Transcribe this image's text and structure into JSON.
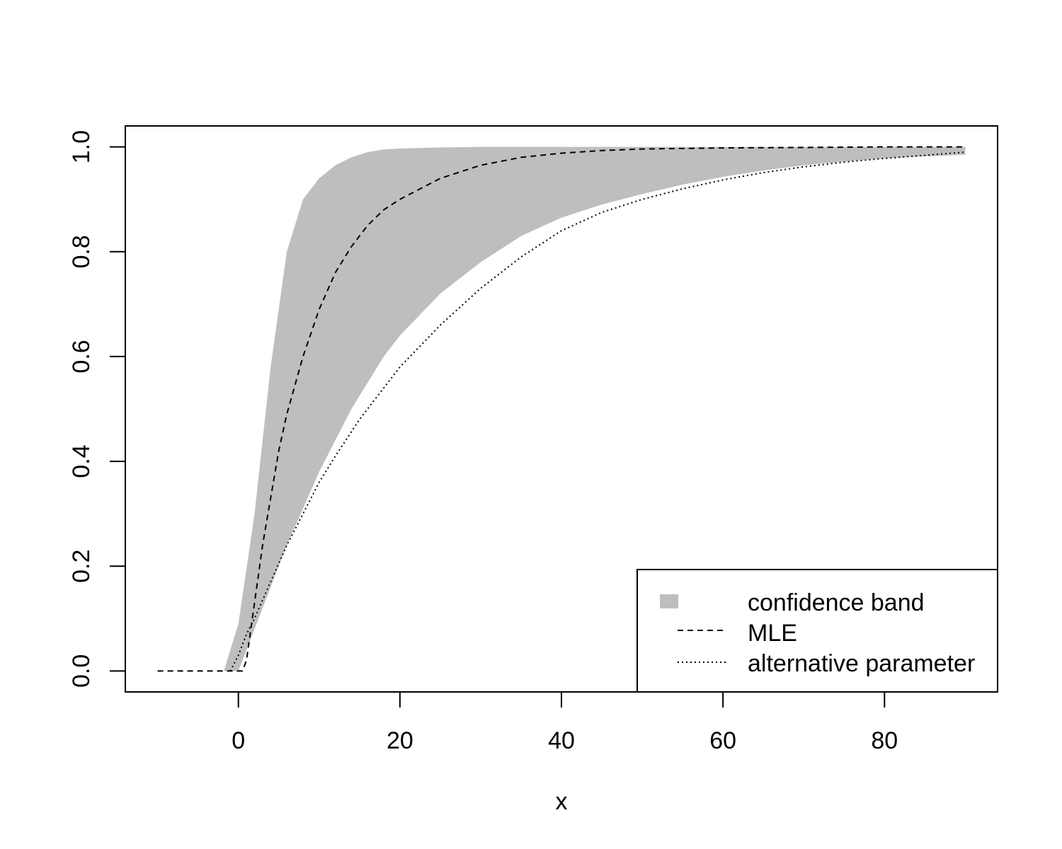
{
  "chart_data": {
    "type": "line",
    "title": "",
    "xlabel": "x",
    "ylabel": "",
    "xlim": [
      -14,
      94
    ],
    "ylim": [
      -0.04,
      1.04
    ],
    "xticks": [
      0,
      20,
      40,
      60,
      80
    ],
    "yticks": [
      0.0,
      0.2,
      0.4,
      0.6,
      0.8,
      1.0
    ],
    "xtick_labels": [
      "0",
      "20",
      "40",
      "60",
      "80"
    ],
    "ytick_labels": [
      "0.0",
      "0.2",
      "0.4",
      "0.6",
      "0.8",
      "1.0"
    ],
    "grid": false,
    "legend_position": "bottom-right",
    "band": {
      "name": "confidence band",
      "color": "#bebebe",
      "x": [
        -1.8,
        0,
        2,
        4,
        6,
        8,
        10,
        12,
        14,
        16,
        18,
        20,
        25,
        30,
        35,
        40,
        45,
        50,
        55,
        60,
        65,
        70,
        75,
        80,
        85,
        90
      ],
      "upper": [
        0.0,
        0.09,
        0.3,
        0.58,
        0.8,
        0.9,
        0.94,
        0.965,
        0.98,
        0.99,
        0.995,
        0.997,
        0.999,
        1.0,
        1.0,
        1.0,
        1.0,
        1.0,
        1.0,
        1.0,
        1.0,
        1.0,
        1.0,
        1.0,
        1.0,
        1.0
      ],
      "lower": [
        0.0,
        0.0,
        0.08,
        0.16,
        0.24,
        0.31,
        0.38,
        0.44,
        0.5,
        0.55,
        0.6,
        0.64,
        0.72,
        0.78,
        0.83,
        0.865,
        0.89,
        0.91,
        0.928,
        0.943,
        0.955,
        0.965,
        0.972,
        0.978,
        0.982,
        0.985
      ]
    },
    "series": [
      {
        "name": "MLE",
        "style": "dashed",
        "x": [
          -10,
          0.5,
          1,
          2,
          3,
          4,
          5,
          6,
          8,
          10,
          12,
          14,
          16,
          18,
          20,
          25,
          30,
          35,
          40,
          45,
          50,
          60,
          70,
          80,
          90
        ],
        "y": [
          0.0,
          0.0,
          0.02,
          0.13,
          0.24,
          0.33,
          0.42,
          0.49,
          0.6,
          0.69,
          0.76,
          0.81,
          0.85,
          0.88,
          0.9,
          0.94,
          0.965,
          0.98,
          0.988,
          0.993,
          0.996,
          0.998,
          0.999,
          1.0,
          1.0
        ]
      },
      {
        "name": "alternative parameter",
        "style": "dotted",
        "x": [
          -1,
          0,
          1,
          2,
          4,
          6,
          8,
          10,
          12,
          15,
          20,
          25,
          30,
          35,
          40,
          45,
          50,
          55,
          60,
          65,
          70,
          75,
          80,
          85,
          90
        ],
        "y": [
          0.0,
          0.03,
          0.07,
          0.1,
          0.17,
          0.24,
          0.3,
          0.36,
          0.41,
          0.48,
          0.58,
          0.66,
          0.73,
          0.79,
          0.84,
          0.875,
          0.9,
          0.92,
          0.937,
          0.951,
          0.962,
          0.971,
          0.978,
          0.984,
          0.99
        ]
      }
    ]
  }
}
